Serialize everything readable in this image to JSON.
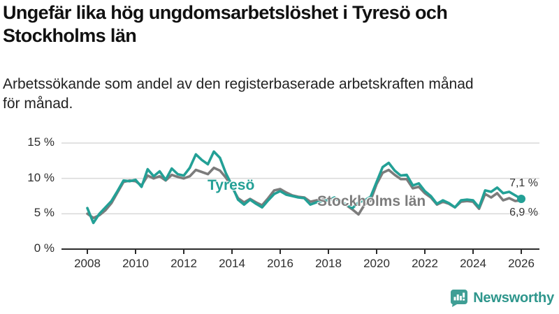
{
  "header": {
    "title": "Ungefär lika hög ungdomsarbetslöshet i Tyresö och Stockholms län",
    "title_lines": [
      "Ungefär lika hög ungdomsarbetslöshet i Tyresö och",
      "Stockholms län"
    ],
    "subtitle_lines": [
      "Arbetssökande som andel av den registerbaserade arbetskraften månad",
      "för månad."
    ]
  },
  "chart_data": {
    "type": "line",
    "title": "Ungefär lika hög ungdomsarbetslöshet i Tyresö och Stockholms län",
    "subtitle": "Arbetssökande som andel av den registerbaserade arbetskraften månad för månad.",
    "xlabel": "",
    "ylabel": "",
    "unit": "%",
    "grid": "horizontal",
    "legend_position": "inline-labels-on-lines",
    "xlim": [
      2007.3,
      2026.8
    ],
    "ylim": [
      0,
      15.9
    ],
    "x": [
      2008.0,
      2008.25,
      2008.5,
      2008.75,
      2009.0,
      2009.25,
      2009.5,
      2009.75,
      2010.0,
      2010.25,
      2010.5,
      2010.75,
      2011.0,
      2011.25,
      2011.5,
      2011.75,
      2012.0,
      2012.25,
      2012.5,
      2012.75,
      2013.0,
      2013.25,
      2013.5,
      2013.75,
      2014.0,
      2014.25,
      2014.5,
      2014.75,
      2015.0,
      2015.25,
      2015.5,
      2015.75,
      2016.0,
      2016.25,
      2016.5,
      2016.75,
      2017.0,
      2017.25,
      2017.5,
      2017.75,
      2018.0,
      2018.25,
      2018.5,
      2018.75,
      2019.0,
      2019.25,
      2019.5,
      2019.75,
      2020.0,
      2020.25,
      2020.5,
      2020.75,
      2021.0,
      2021.25,
      2021.5,
      2021.75,
      2022.0,
      2022.25,
      2022.5,
      2022.75,
      2023.0,
      2023.25,
      2023.5,
      2023.75,
      2024.0,
      2024.25,
      2024.5,
      2024.75,
      2025.0,
      2025.25,
      2025.5,
      2025.75,
      2026.0
    ],
    "series": [
      {
        "name": "Tyresö",
        "color": "#23a096",
        "end_label": "7,1 %",
        "end_value": 7.1,
        "values": [
          5.8,
          3.7,
          5.0,
          5.9,
          6.8,
          8.2,
          9.7,
          9.6,
          9.8,
          8.8,
          11.3,
          10.3,
          11.0,
          9.8,
          11.4,
          10.6,
          10.4,
          11.5,
          13.4,
          12.6,
          12.0,
          13.8,
          12.9,
          10.7,
          9.0,
          7.0,
          6.3,
          7.0,
          6.4,
          5.9,
          6.9,
          7.8,
          8.2,
          7.7,
          7.5,
          7.3,
          7.2,
          6.3,
          6.6,
          6.8,
          6.9,
          7.3,
          6.7,
          6.3,
          5.8,
          6.6,
          6.9,
          7.4,
          9.5,
          11.6,
          12.2,
          11.1,
          10.4,
          10.5,
          9.0,
          9.3,
          8.2,
          7.5,
          6.4,
          6.9,
          6.5,
          5.9,
          6.9,
          7.0,
          6.9,
          5.9,
          8.3,
          8.1,
          8.7,
          7.9,
          8.1,
          7.6,
          7.1
        ]
      },
      {
        "name": "Stockholms län",
        "color": "#7c7c7c",
        "end_label": "6,9 %",
        "end_value": 6.9,
        "values": [
          5.0,
          4.4,
          4.8,
          5.5,
          6.5,
          8.0,
          9.5,
          9.7,
          9.6,
          9.0,
          10.4,
          10.0,
          10.3,
          9.7,
          10.5,
          10.2,
          10.0,
          10.3,
          11.2,
          10.9,
          10.6,
          11.5,
          11.1,
          10.1,
          8.8,
          7.2,
          6.6,
          7.1,
          6.6,
          6.2,
          7.2,
          8.3,
          8.5,
          8.0,
          7.6,
          7.4,
          7.3,
          6.7,
          6.9,
          7.0,
          7.0,
          7.1,
          6.8,
          6.2,
          5.6,
          4.9,
          6.3,
          6.9,
          9.2,
          10.8,
          11.2,
          10.5,
          9.9,
          9.9,
          8.6,
          8.8,
          7.9,
          7.3,
          6.3,
          6.7,
          6.4,
          5.9,
          6.7,
          6.8,
          6.7,
          5.7,
          7.8,
          7.3,
          7.9,
          6.9,
          7.2,
          6.8,
          6.9
        ]
      }
    ],
    "y_ticks": {
      "values": [
        0,
        5,
        10,
        15
      ],
      "labels": [
        "0 %",
        "5 %",
        "10 %",
        "15 %"
      ]
    },
    "x_ticks": {
      "values": [
        2008,
        2010,
        2012,
        2014,
        2016,
        2018,
        2020,
        2022,
        2024,
        2026
      ],
      "labels": [
        "2008",
        "2010",
        "2012",
        "2014",
        "2016",
        "2018",
        "2020",
        "2022",
        "2024",
        "2026"
      ]
    }
  },
  "colors": {
    "accent_teal": "#23a096",
    "series_gray": "#7c7c7c",
    "gridline": "#d9d9d9",
    "axis": "#2b2b2b",
    "logo_teal": "#3f9e95",
    "brand_text_teal": "#2e968c"
  },
  "footer": {
    "brand": "Newsworthy",
    "logo_icon": "bar-chart-speech-bubble-icon"
  }
}
